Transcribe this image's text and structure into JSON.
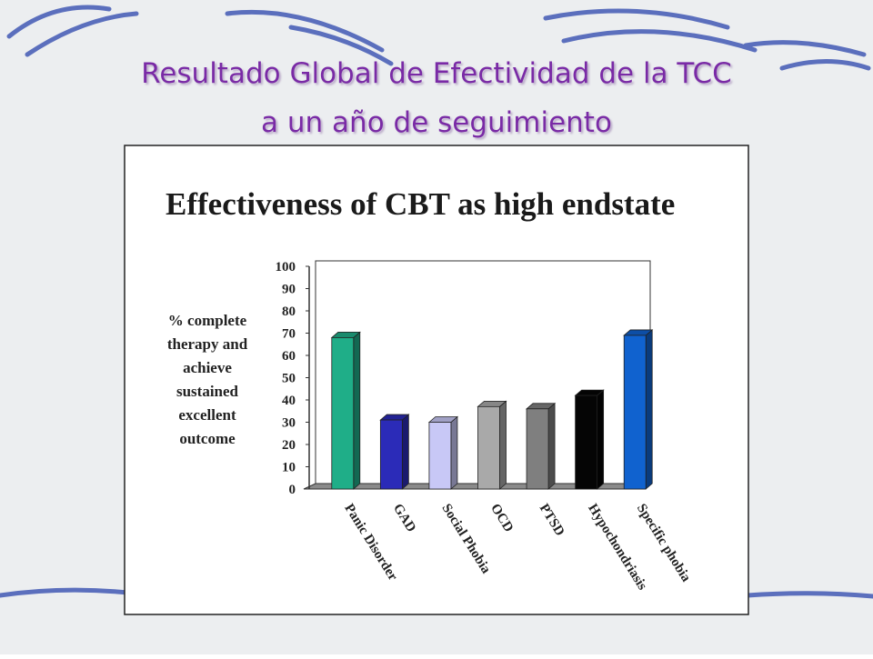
{
  "slide": {
    "title_lines": [
      "Resultado Global de Efectividad de la TCC",
      "a un año de seguimiento"
    ]
  },
  "chart_data": {
    "type": "bar3d",
    "title": "Effectiveness of CBT as high endstate",
    "ylabel_lines": [
      "% complete",
      "therapy and",
      "achieve",
      "sustained",
      "excellent",
      "outcome"
    ],
    "categories": [
      "Panic Disorder",
      "GAD",
      "Social Phobia",
      "OCD",
      "PTSD",
      "Hypochondriasis",
      "Specific phobia"
    ],
    "values": [
      68,
      31,
      30,
      37,
      36,
      42,
      69
    ],
    "colors": [
      "#1fae88",
      "#2b2bb8",
      "#c8c8f6",
      "#a9a9a9",
      "#7f7f7f",
      "#050505",
      "#1062cf"
    ],
    "ylim": [
      0,
      100
    ],
    "yticks": [
      0,
      10,
      20,
      30,
      40,
      50,
      60,
      70,
      80,
      90,
      100
    ]
  }
}
